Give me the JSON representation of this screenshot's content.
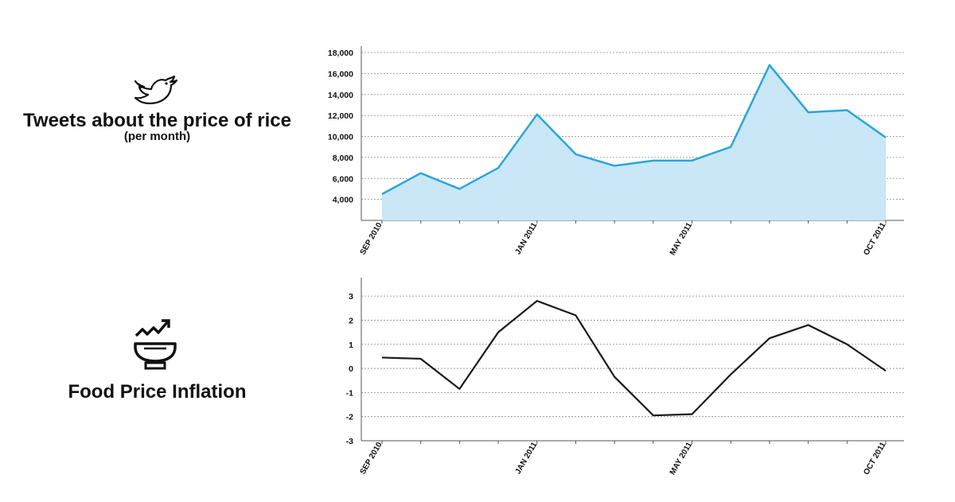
{
  "panels": [
    {
      "title": "Tweets about the price of rice",
      "subtitle": "(per month)",
      "icon": "twitter-bird-icon"
    },
    {
      "title": "Food Price Inflation",
      "icon": "rice-bowl-rising-trend-icon"
    }
  ],
  "colors": {
    "tweets_line": "#2aa6d9",
    "tweets_fill": "#c9e7f6",
    "inflation_line": "#1a1a1a",
    "grid": "#8a8a8a",
    "axis": "#555555"
  },
  "chart_data": [
    {
      "type": "area",
      "title": "Tweets about the price of rice",
      "subtitle": "(per month)",
      "x": [
        "Sep 2010",
        "Oct 2010",
        "Nov 2010",
        "Dec 2010",
        "Jan 2011",
        "Feb 2011",
        "Mar 2011",
        "Apr 2011",
        "May 2011",
        "Jun 2011",
        "Jul 2011",
        "Aug 2011",
        "Sep 2011",
        "Oct 2011"
      ],
      "x_tick_labels": [
        {
          "index": 0,
          "label": "SEP 2010"
        },
        {
          "index": 4,
          "label": "JAN 2011"
        },
        {
          "index": 8,
          "label": "MAY 2011"
        },
        {
          "index": 13,
          "label": "OCT 2011"
        }
      ],
      "y_tick_labels": [
        "4,000",
        "6,000",
        "8,000",
        "10,000",
        "12,000",
        "14,000",
        "16,000",
        "18,000"
      ],
      "y_ticks": [
        4000,
        6000,
        8000,
        10000,
        12000,
        14000,
        16000,
        18000
      ],
      "ylim": [
        2000,
        18000
      ],
      "values": [
        4500,
        6500,
        5000,
        7000,
        12100,
        8300,
        7200,
        7700,
        7700,
        9000,
        16800,
        12300,
        12500,
        9900
      ],
      "grid": true
    },
    {
      "type": "line",
      "title": "Food Price Inflation",
      "x": [
        "Sep 2010",
        "Oct 2010",
        "Nov 2010",
        "Dec 2010",
        "Jan 2011",
        "Feb 2011",
        "Mar 2011",
        "Apr 2011",
        "May 2011",
        "Jun 2011",
        "Jul 2011",
        "Aug 2011",
        "Sep 2011",
        "Oct 2011"
      ],
      "x_tick_labels": [
        {
          "index": 0,
          "label": "SEP 2010"
        },
        {
          "index": 4,
          "label": "JAN 2011"
        },
        {
          "index": 8,
          "label": "MAY 2011"
        },
        {
          "index": 13,
          "label": "OCT 2011"
        }
      ],
      "y_tick_labels": [
        "-3",
        "-2",
        "-1",
        "0",
        "1",
        "2",
        "3"
      ],
      "y_ticks": [
        -3,
        -2,
        -1,
        0,
        1,
        2,
        3
      ],
      "ylim": [
        -3,
        3.5
      ],
      "values": [
        0.45,
        0.4,
        -0.85,
        1.5,
        2.8,
        2.2,
        -0.35,
        -1.95,
        -1.9,
        -0.25,
        1.25,
        1.8,
        1.0,
        -0.1
      ],
      "grid": true
    }
  ]
}
